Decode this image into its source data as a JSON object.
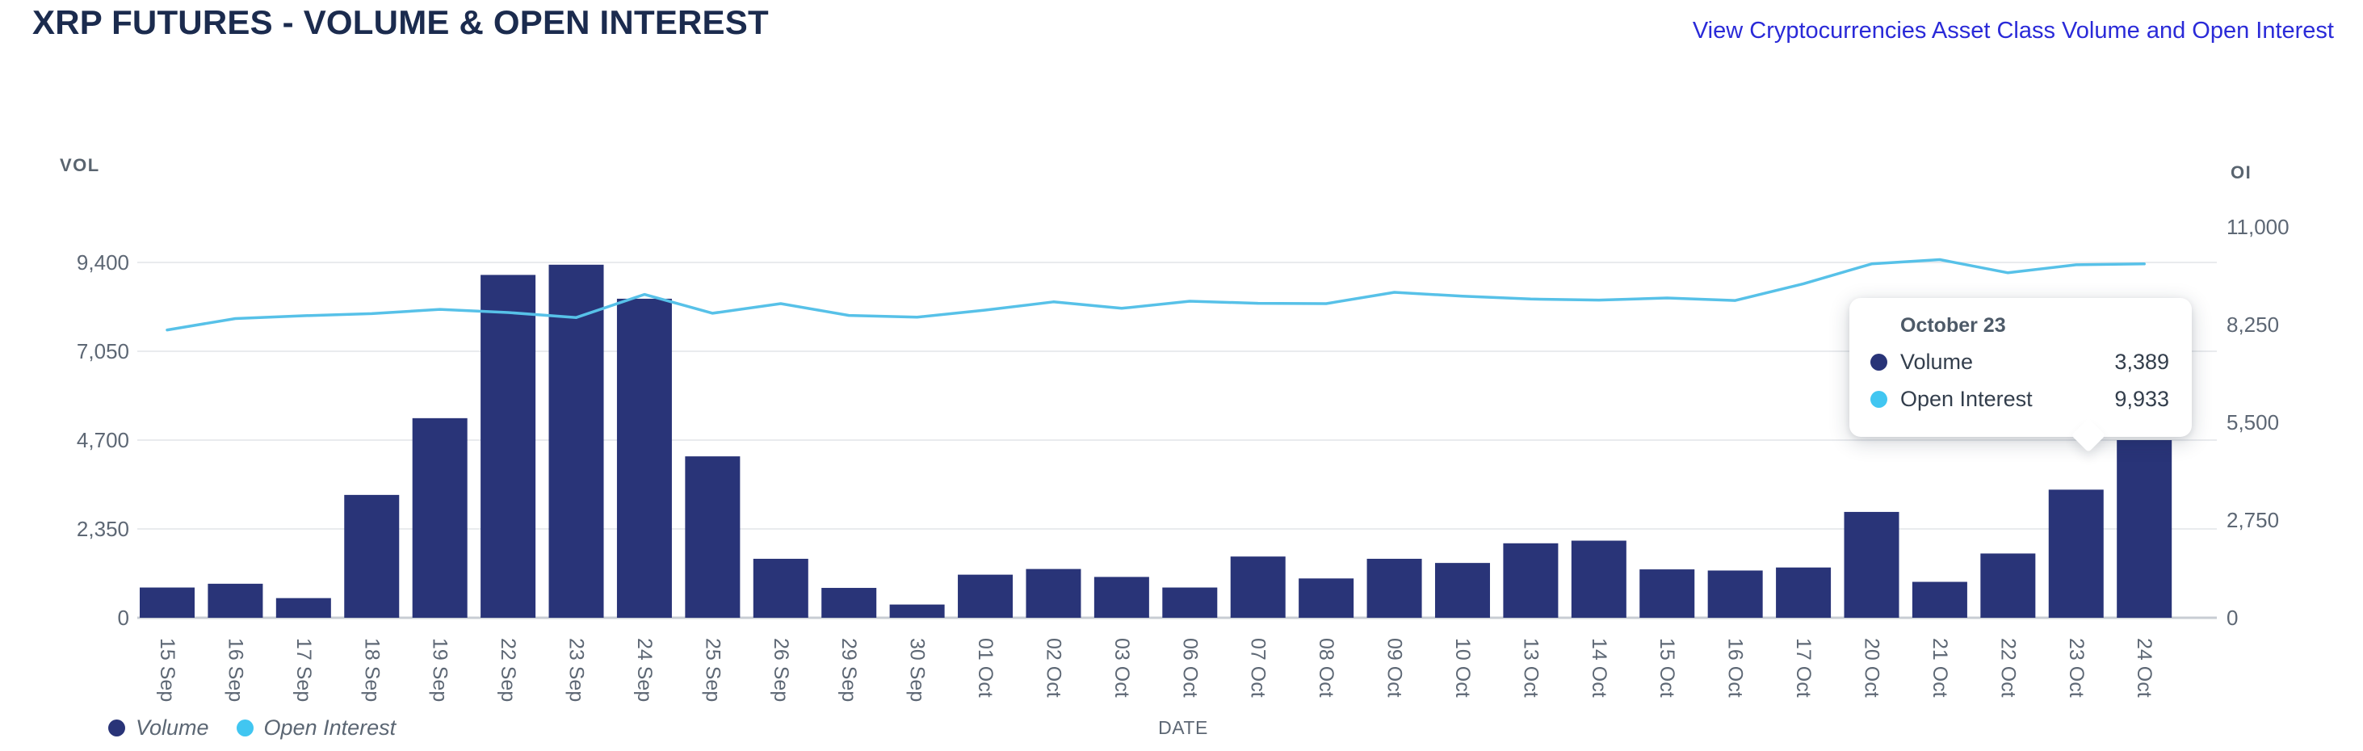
{
  "header": {
    "title": "XRP FUTURES - VOLUME & OPEN INTEREST",
    "link_label": "View Cryptocurrencies Asset Class Volume and Open Interest"
  },
  "axes": {
    "left": {
      "title": "VOL",
      "tick_labels": [
        "9,400",
        "7,050",
        "4,700",
        "2,350",
        "0"
      ]
    },
    "right": {
      "title": "OI",
      "tick_labels": [
        "11,000",
        "8,250",
        "5,500",
        "2,750",
        "0"
      ]
    },
    "x": {
      "title": "DATE"
    }
  },
  "legend": [
    {
      "label": "Volume"
    },
    {
      "label": "Open Interest"
    }
  ],
  "tooltip": {
    "title": "October 23",
    "rows": [
      {
        "label": "Volume",
        "value": "3,389"
      },
      {
        "label": "Open Interest",
        "value": "9,933"
      }
    ]
  },
  "colors": {
    "volume": "#293478",
    "open_interest_dot": "#41c6f1",
    "open_interest_line": "#57c1e8",
    "title": "#1b2b4e",
    "link": "#2a2ad8",
    "axis_text": "#5d6774",
    "grid": "#e9ebee",
    "axis_line": "#c8cdd3"
  },
  "chart_data": {
    "type": "combo",
    "title": "XRP FUTURES - VOLUME & OPEN INTEREST",
    "categories": [
      "15 Sep",
      "16 Sep",
      "17 Sep",
      "18 Sep",
      "19 Sep",
      "22 Sep",
      "23 Sep",
      "24 Sep",
      "25 Sep",
      "26 Sep",
      "29 Sep",
      "30 Sep",
      "01 Oct",
      "02 Oct",
      "03 Oct",
      "06 Oct",
      "07 Oct",
      "08 Oct",
      "09 Oct",
      "10 Oct",
      "13 Oct",
      "14 Oct",
      "15 Oct",
      "16 Oct",
      "17 Oct",
      "20 Oct",
      "21 Oct",
      "22 Oct",
      "23 Oct",
      "24 Oct"
    ],
    "series": [
      {
        "name": "Volume",
        "type": "bar",
        "axis": "left",
        "values": [
          800,
          900,
          520,
          3250,
          5280,
          9070,
          9340,
          8440,
          4270,
          1560,
          790,
          350,
          1140,
          1290,
          1080,
          800,
          1620,
          1040,
          1560,
          1450,
          1970,
          2040,
          1280,
          1250,
          1330,
          2800,
          950,
          1700,
          3389,
          4700
        ]
      },
      {
        "name": "Open Interest",
        "type": "line",
        "axis": "right",
        "values": [
          8100,
          8420,
          8500,
          8560,
          8680,
          8590,
          8450,
          9100,
          8570,
          8840,
          8510,
          8460,
          8660,
          8890,
          8710,
          8910,
          8850,
          8840,
          9160,
          9050,
          8970,
          8940,
          9000,
          8930,
          9400,
          9960,
          10080,
          9710,
          9933,
          9960
        ]
      }
    ],
    "left_axis": {
      "label": "VOL",
      "range": [
        0,
        9400
      ],
      "ticks": [
        0,
        2350,
        4700,
        7050,
        9400
      ]
    },
    "right_axis": {
      "label": "OI",
      "range": [
        0,
        11000
      ],
      "ticks": [
        0,
        2750,
        5500,
        8250,
        11000
      ]
    },
    "xlabel": "DATE",
    "grid": true,
    "legend_position": "bottom-left",
    "highlighted_point": {
      "category": "23 Oct",
      "volume": 3389,
      "open_interest": 9933
    }
  }
}
